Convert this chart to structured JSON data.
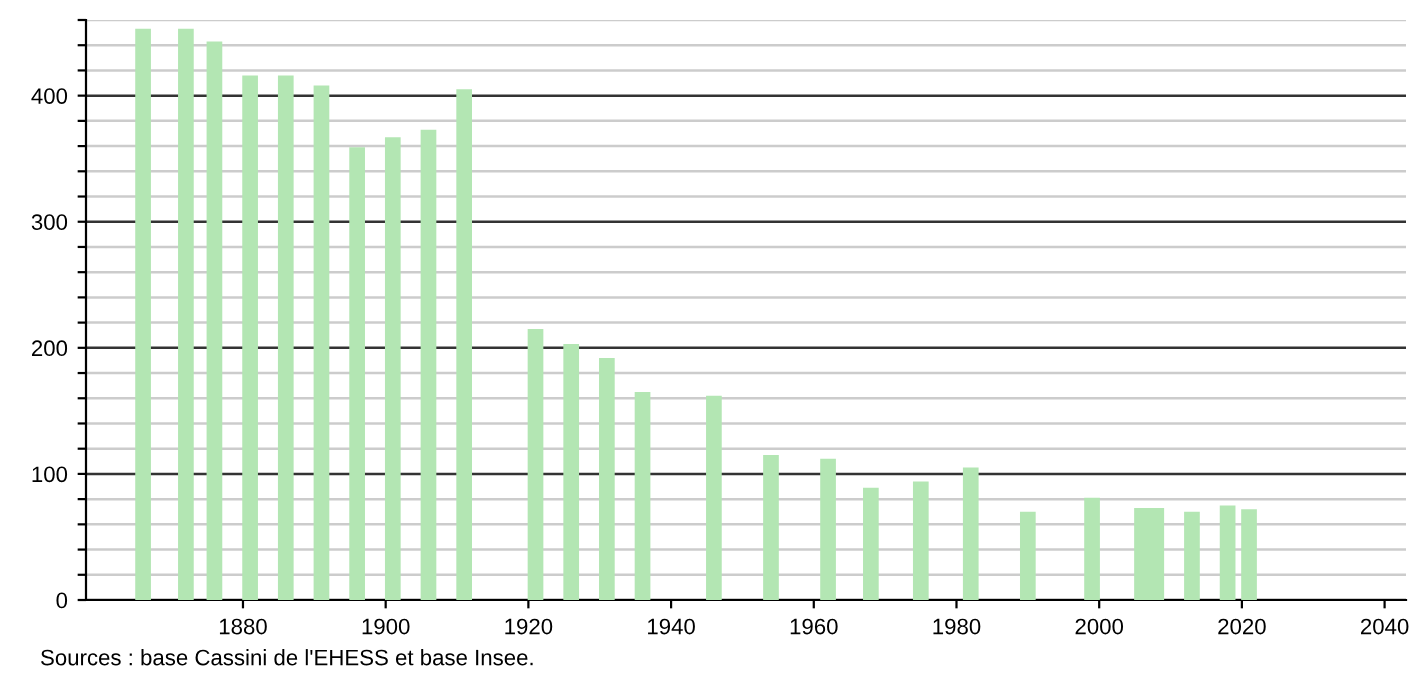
{
  "chart_data": {
    "type": "bar",
    "x": [
      1866,
      1872,
      1876,
      1881,
      1886,
      1891,
      1896,
      1901,
      1906,
      1911,
      1921,
      1926,
      1931,
      1936,
      1946,
      1954,
      1962,
      1968,
      1975,
      1982,
      1990,
      1999,
      2006,
      2008,
      2013,
      2018,
      2021
    ],
    "values": [
      453,
      453,
      443,
      416,
      416,
      408,
      359,
      367,
      373,
      405,
      215,
      203,
      192,
      165,
      162,
      115,
      112,
      89,
      94,
      105,
      70,
      81,
      73,
      73,
      70,
      75,
      72
    ],
    "color": "#b3e6b3",
    "xlim": [
      1858,
      2043
    ],
    "xticks": [
      1880,
      1900,
      1920,
      1940,
      1960,
      1980,
      2000,
      2020,
      2040
    ],
    "ylim": [
      0,
      460
    ],
    "yticks": [
      0,
      {
        "value": 20,
        "label": null
      },
      {
        "value": 40,
        "label": null
      },
      {
        "value": 60,
        "label": null
      },
      {
        "value": 80,
        "label": null
      },
      100,
      {
        "value": 120,
        "label": null
      },
      {
        "value": 140,
        "label": null
      },
      {
        "value": 160,
        "label": null
      },
      {
        "value": 180,
        "label": null
      },
      200,
      {
        "value": 220,
        "label": null
      },
      {
        "value": 240,
        "label": null
      },
      {
        "value": 260,
        "label": null
      },
      {
        "value": 280,
        "label": null
      },
      300,
      {
        "value": 320,
        "label": null
      },
      {
        "value": 340,
        "label": null
      },
      {
        "value": 360,
        "label": null
      },
      {
        "value": 380,
        "label": null
      },
      400,
      {
        "value": 420,
        "label": null
      },
      {
        "value": 440,
        "label": null
      },
      {
        "value": 460,
        "label": null
      }
    ],
    "grid": "y",
    "annotations": [
      "Sources : base Cassini de l'EHESS et base Insee."
    ]
  }
}
